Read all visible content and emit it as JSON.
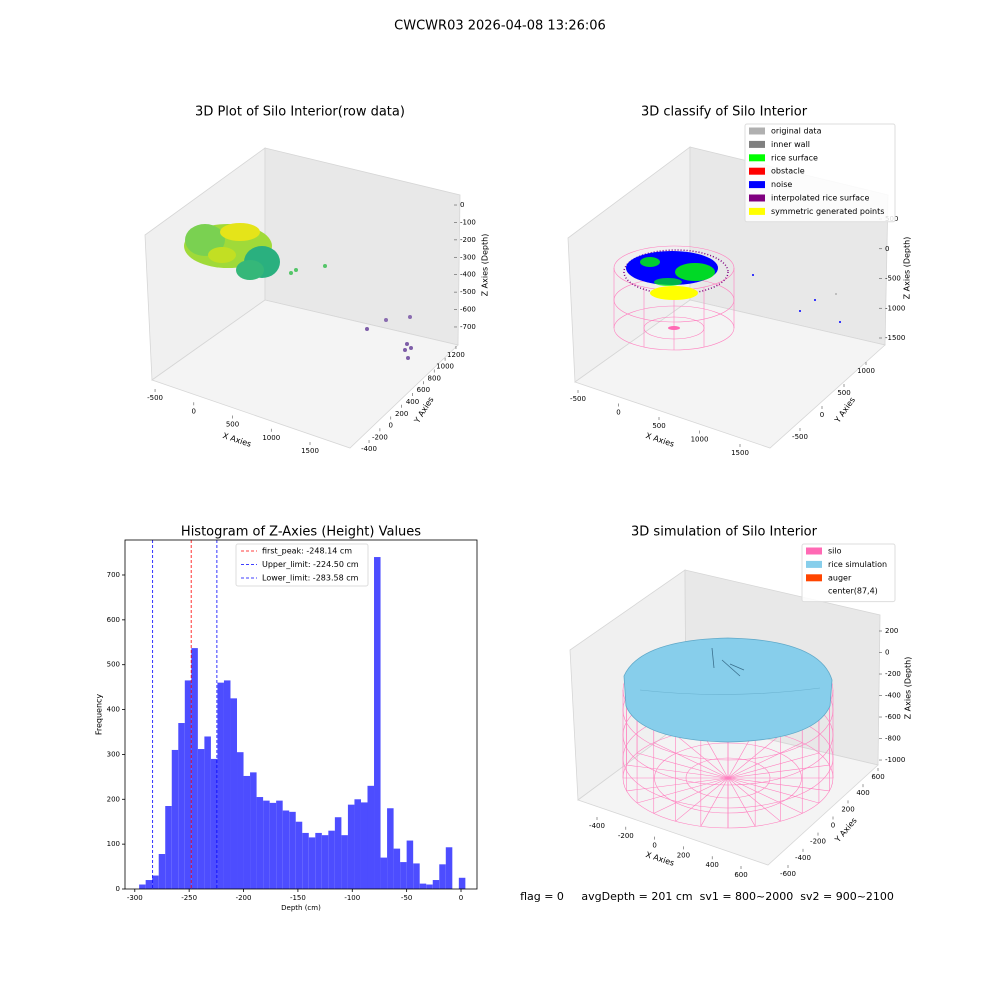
{
  "figure": {
    "title": "CWCWR03 2026-04-08 13:26:06",
    "footer": "flag = 0     avgDepth = 201 cm  sv1 = 800~2000  sv2 = 900~2100"
  },
  "chart_data": [
    {
      "type": "scatter3d",
      "title": "3D Plot of Silo Interior(row data)",
      "xlabel": "X Axies",
      "ylabel": "Y Axies",
      "zlabel": "Z Axies (Depth)",
      "xlim": [
        -600,
        1700
      ],
      "xticks": [
        -500,
        0,
        500,
        1000,
        1500
      ],
      "ylim": [
        -500,
        1300
      ],
      "yticks": [
        -400,
        -200,
        0,
        200,
        400,
        600,
        800,
        1000,
        1200
      ],
      "zlim": [
        -800,
        50
      ],
      "zticks": [
        0,
        -100,
        -200,
        -300,
        -400,
        -500,
        -600,
        -700
      ]
    },
    {
      "type": "scatter3d",
      "title": "3D classify of Silo Interior",
      "xlabel": "X Axies",
      "ylabel": "Y Axies",
      "zlabel": "Z Axies (Depth)",
      "xlim": [
        -600,
        1700
      ],
      "xticks": [
        -500,
        0,
        500,
        1000,
        1500
      ],
      "ylim": [
        -700,
        1200
      ],
      "yticks": [
        -500,
        0,
        500,
        1000
      ],
      "zlim": [
        -1700,
        700
      ],
      "zticks": [
        500,
        0,
        -500,
        -1000,
        -1500
      ],
      "legend": [
        {
          "label": "original data",
          "color": "#b0b0b0"
        },
        {
          "label": "inner wall",
          "color": "#808080"
        },
        {
          "label": "rice surface",
          "color": "#00ff00"
        },
        {
          "label": "obstacle",
          "color": "#ff0000"
        },
        {
          "label": "noise",
          "color": "#0000ff"
        },
        {
          "label": "interpolated rice surface",
          "color": "#800080"
        },
        {
          "label": "symmetric generated points",
          "color": "#ffff00"
        }
      ]
    },
    {
      "type": "histogram",
      "title": "Histogram of Z-Axies (Height) Values",
      "xlabel": "Depth (cm)",
      "ylabel": "Frequency",
      "color": "#4d4dff",
      "bins": [
        -296,
        -290,
        -284,
        -278,
        -272,
        -266,
        -260,
        -254,
        -248,
        -242,
        -236,
        -230,
        -224,
        -218,
        -212,
        -206,
        -200,
        -194,
        -188,
        -182,
        -176,
        -170,
        -164,
        -158,
        -152,
        -146,
        -140,
        -134,
        -128,
        -122,
        -116,
        -110,
        -104,
        -98,
        -92,
        -86,
        -80,
        -74,
        -68,
        -62,
        -56,
        -50,
        -44,
        -38,
        -32,
        -26,
        -20,
        -14,
        -8,
        -2,
        4
      ],
      "counts": [
        10,
        20,
        30,
        78,
        185,
        310,
        370,
        465,
        537,
        312,
        340,
        290,
        460,
        465,
        425,
        305,
        252,
        260,
        205,
        197,
        192,
        197,
        175,
        172,
        150,
        125,
        115,
        125,
        120,
        130,
        160,
        120,
        188,
        200,
        193,
        230,
        740,
        70,
        180,
        90,
        60,
        108,
        57,
        12,
        10,
        20,
        55,
        93,
        0,
        25
      ],
      "xlim": [
        -309,
        14.7
      ],
      "xticks": [
        -300,
        -250,
        -200,
        -150,
        -100,
        -50,
        0
      ],
      "ylim": [
        0,
        778
      ],
      "yticks": [
        0,
        100,
        200,
        300,
        400,
        500,
        600,
        700
      ],
      "lines": [
        {
          "name": "first_peak: -248.14 cm",
          "value": -248.14,
          "color": "#ff0000"
        },
        {
          "name": "Upper_limit: -224.50 cm",
          "value": -224.5,
          "color": "#0000ff"
        },
        {
          "name": "Lower_limit: -283.58 cm",
          "value": -283.58,
          "color": "#0000ff"
        }
      ]
    },
    {
      "type": "scatter3d",
      "title": "3D simulation of Silo Interior",
      "xlabel": "X Axies",
      "ylabel": "Y Axies",
      "zlabel": "Z Axies (Depth)",
      "xlim": [
        -500,
        700
      ],
      "xticks": [
        -400,
        -200,
        0,
        200,
        400,
        600
      ],
      "ylim": [
        -700,
        700
      ],
      "yticks": [
        -600,
        -400,
        -200,
        0,
        200,
        400,
        600
      ],
      "zlim": [
        -1050,
        280
      ],
      "zticks": [
        200,
        0,
        -200,
        -400,
        -600,
        -800,
        -1000
      ],
      "legend": [
        {
          "label": "silo",
          "color": "#ff69b4"
        },
        {
          "label": "rice simulation",
          "color": "#87ceeb"
        },
        {
          "label": "auger",
          "color": "#ff4500"
        },
        {
          "label": "center(87,4)",
          "color": "#ffffff"
        }
      ]
    }
  ]
}
